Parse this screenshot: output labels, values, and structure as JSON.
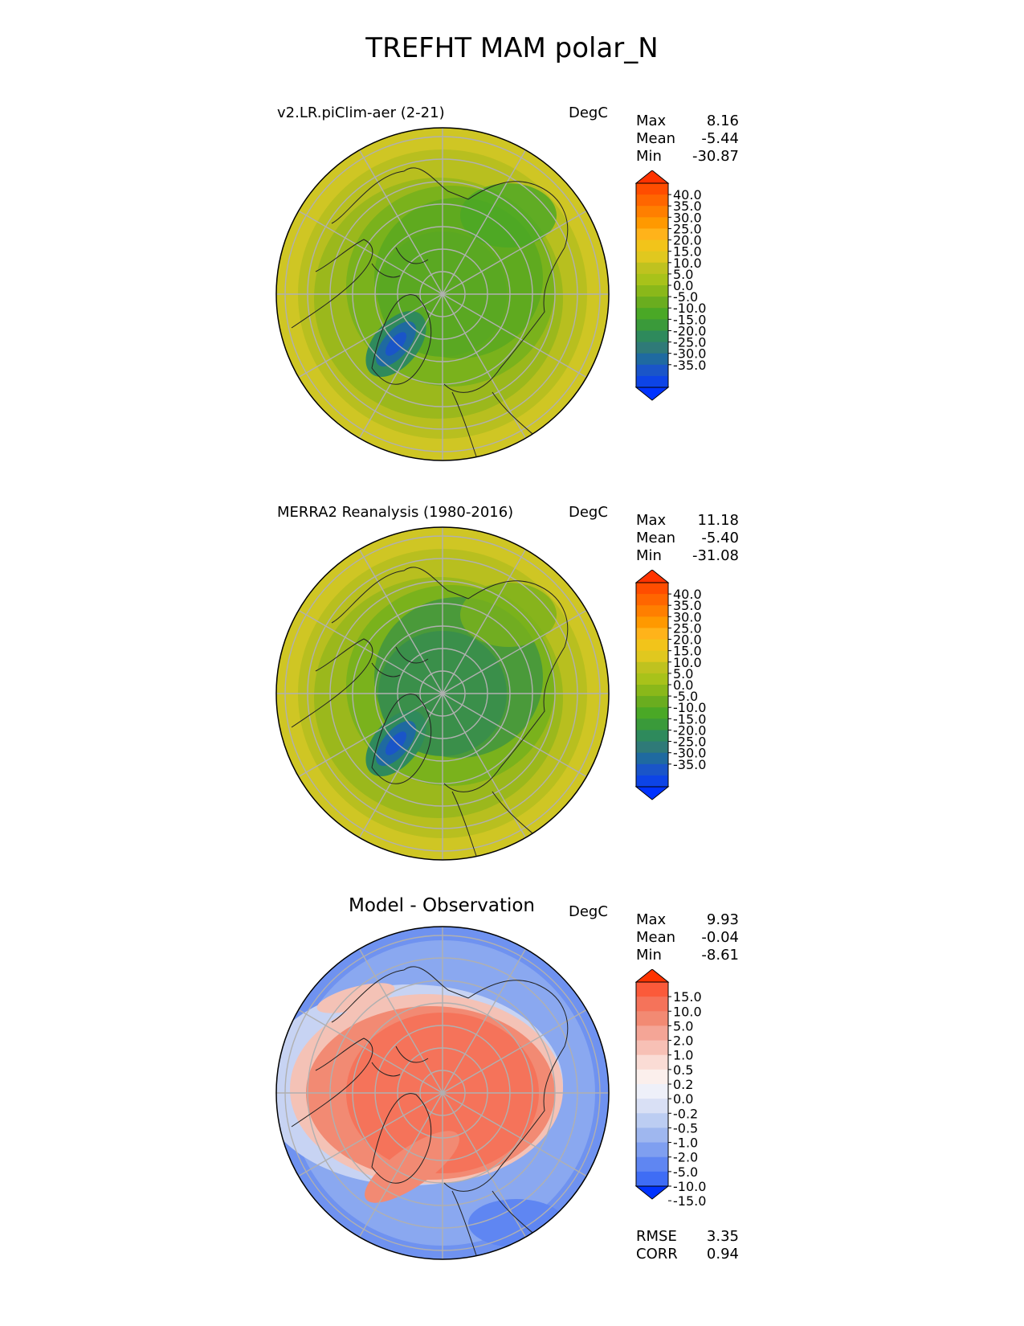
{
  "title": "TREFHT MAM polar_N",
  "panels": [
    {
      "id": "test",
      "title": "v2.LR.piClim-aer (2-21)",
      "title_style": "left",
      "units": "DegC",
      "stats": [
        {
          "label": "Max",
          "value": "8.16"
        },
        {
          "label": "Mean",
          "value": "-5.44"
        },
        {
          "label": "Min",
          "value": "-30.87"
        }
      ],
      "colorbar": {
        "ticks": [
          "40.0",
          "35.0",
          "30.0",
          "25.0",
          "20.0",
          "15.0",
          "10.0",
          "5.0",
          "0.0",
          "-5.0",
          "-10.0",
          "-15.0",
          "-20.0",
          "-25.0",
          "-30.0",
          "-35.0"
        ],
        "colors": [
          "#ff3300",
          "#ff4d00",
          "#ff6600",
          "#ff7f00",
          "#ff9900",
          "#ffb31a",
          "#f2c41a",
          "#e0c81f",
          "#bfc21f",
          "#a8c21a",
          "#8ab81a",
          "#6aad1f",
          "#4aa826",
          "#3a9a3a",
          "#2e8a5c",
          "#2f7a78",
          "#1f6aa0",
          "#1a55c8",
          "#0d44e6",
          "#0033ff"
        ]
      },
      "map_style": "climate",
      "polar_mean_color": "#5aa822"
    },
    {
      "id": "ref",
      "title": "MERRA2 Reanalysis (1980-2016)",
      "title_style": "left",
      "units": "DegC",
      "stats": [
        {
          "label": "Max",
          "value": "11.18"
        },
        {
          "label": "Mean",
          "value": "-5.40"
        },
        {
          "label": "Min",
          "value": "-31.08"
        }
      ],
      "colorbar": {
        "ticks": [
          "40.0",
          "35.0",
          "30.0",
          "25.0",
          "20.0",
          "15.0",
          "10.0",
          "5.0",
          "0.0",
          "-5.0",
          "-10.0",
          "-15.0",
          "-20.0",
          "-25.0",
          "-30.0",
          "-35.0"
        ],
        "colors": [
          "#ff3300",
          "#ff4d00",
          "#ff6600",
          "#ff7f00",
          "#ff9900",
          "#ffb31a",
          "#f2c41a",
          "#e0c81f",
          "#bfc21f",
          "#a8c21a",
          "#8ab81a",
          "#6aad1f",
          "#4aa826",
          "#3a9a3a",
          "#2e8a5c",
          "#2f7a78",
          "#1f6aa0",
          "#1a55c8",
          "#0d44e6",
          "#0033ff"
        ]
      },
      "map_style": "climate",
      "polar_mean_color": "#3a8f4a"
    },
    {
      "id": "diff",
      "title": "Model - Observation",
      "title_style": "center",
      "units": "DegC",
      "stats": [
        {
          "label": "Max",
          "value": "9.93"
        },
        {
          "label": "Mean",
          "value": "-0.04"
        },
        {
          "label": "Min",
          "value": "-8.61"
        }
      ],
      "colorbar": {
        "ticks": [
          "15.0",
          "10.0",
          "5.0",
          "2.0",
          "1.0",
          "0.5",
          "0.2",
          "0.0",
          "-0.2",
          "-0.5",
          "-1.0",
          "-2.0",
          "-5.0",
          "-10.0",
          "-15.0"
        ],
        "colors": [
          "#ff3300",
          "#fb5a3a",
          "#f5735a",
          "#f28a73",
          "#f4a596",
          "#f7c0b5",
          "#fadcd5",
          "#fbefec",
          "#eef0f9",
          "#d9e0f5",
          "#bccdf2",
          "#9fb7ef",
          "#7f9ff0",
          "#5f86f2",
          "#3f6df5",
          "#0033ff"
        ]
      },
      "map_style": "diff"
    }
  ],
  "metrics": [
    {
      "label": "RMSE",
      "value": "3.35"
    },
    {
      "label": "CORR",
      "value": "0.94"
    }
  ],
  "colors": {
    "grid": "#b0b0b0",
    "coast": "#222222"
  }
}
